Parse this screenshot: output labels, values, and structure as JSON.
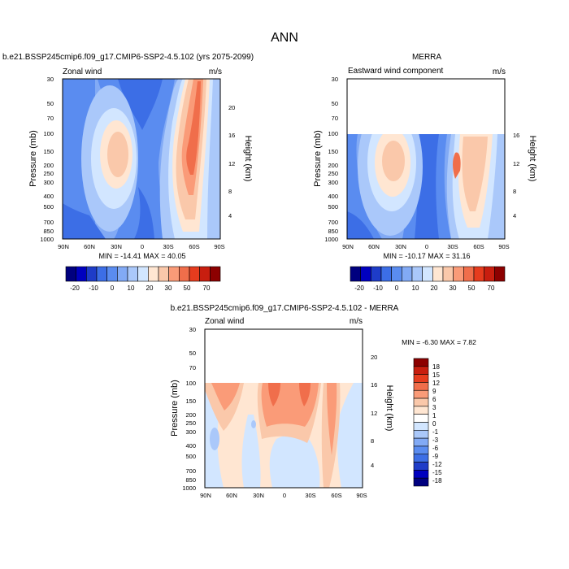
{
  "page_title": "ANN",
  "colors": {
    "contours": [
      "#00007f",
      "#0000bf",
      "#1e3cc8",
      "#3c6ee6",
      "#5a8cf0",
      "#82aaf5",
      "#aac8fa",
      "#d2e6ff",
      "#ffe6d2",
      "#fac8aa",
      "#fa9b78",
      "#f06e4b",
      "#e63c1e",
      "#c81e0f",
      "#8c0000"
    ]
  },
  "chart_data": [
    {
      "type": "heatmap",
      "title": "b.e21.BSSP245cmip6.f09_g17.CMIP6-SSP2-4.5.102 (yrs 2075-2099)",
      "left_label": "Zonal wind",
      "units_label": "m/s",
      "ylabel": "Pressure (mb)",
      "y2label": "Height (km)",
      "x_ticks": [
        "90N",
        "60N",
        "30N",
        "0",
        "30S",
        "60S",
        "90S"
      ],
      "y_ticks": [
        "30",
        "50",
        "70",
        "100",
        "150",
        "200",
        "250",
        "300",
        "400",
        "500",
        "700",
        "850",
        "1000"
      ],
      "y2_ticks": [
        "20",
        "16",
        "12",
        "8",
        "4"
      ],
      "stats": "MIN = -14.41   MAX =  40.05",
      "colorbar_labels": [
        "-20",
        "-10",
        "0",
        "10",
        "20",
        "30",
        "50",
        "70"
      ]
    },
    {
      "type": "heatmap",
      "title": "MERRA",
      "left_label": "Eastward wind component",
      "units_label": "m/s",
      "ylabel": "Pressure (mb)",
      "y2label": "Height (km)",
      "x_ticks": [
        "90N",
        "60N",
        "30N",
        "0",
        "30S",
        "60S",
        "90S"
      ],
      "y_ticks": [
        "30",
        "50",
        "70",
        "100",
        "150",
        "200",
        "250",
        "300",
        "400",
        "500",
        "700",
        "850",
        "1000"
      ],
      "y2_ticks": [
        "16",
        "12",
        "8",
        "4"
      ],
      "stats": "MIN = -10.17   MAX =  31.16",
      "colorbar_labels": [
        "-20",
        "-10",
        "0",
        "10",
        "20",
        "30",
        "50",
        "70"
      ]
    },
    {
      "type": "heatmap",
      "title": "b.e21.BSSP245cmip6.f09_g17.CMIP6-SSP2-4.5.102 - MERRA",
      "left_label": "Zonal wind",
      "units_label": "m/s",
      "ylabel": "Pressure (mb)",
      "y2label": "Height (km)",
      "x_ticks": [
        "90N",
        "60N",
        "30N",
        "0",
        "30S",
        "60S",
        "90S"
      ],
      "y_ticks": [
        "30",
        "50",
        "70",
        "100",
        "150",
        "200",
        "250",
        "300",
        "400",
        "500",
        "700",
        "850",
        "1000"
      ],
      "y2_ticks": [
        "20",
        "16",
        "12",
        "8",
        "4"
      ],
      "stats": "MIN = -6.30   MAX =  7.82",
      "colorbar_labels": [
        "18",
        "15",
        "12",
        "9",
        "6",
        "3",
        "1",
        "0",
        "-1",
        "-3",
        "-6",
        "-9",
        "-12",
        "-15",
        "-18"
      ]
    }
  ]
}
